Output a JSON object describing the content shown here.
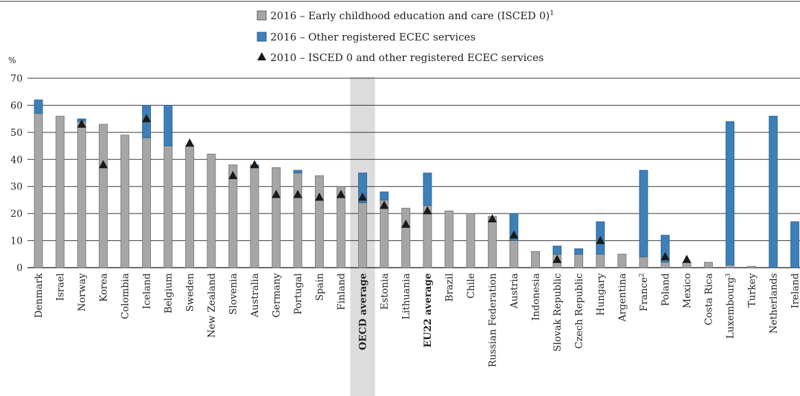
{
  "chart_data": {
    "type": "bar",
    "ylabel": "%",
    "ylim": [
      0,
      70
    ],
    "yticks": [
      0,
      10,
      20,
      30,
      40,
      50,
      60,
      70
    ],
    "grid": true,
    "legend_position": "top-center",
    "colors": {
      "isced0": "#a6a6a6",
      "other": "#3d7fb8",
      "marker": "#1a1a1a",
      "highlight": "#dcdcdc"
    },
    "legend": [
      {
        "label": "2016 – Early childhood education and care (ISCED 0)",
        "sup": "1",
        "kind": "grey-square"
      },
      {
        "label": "2016 – Other registered ECEC services",
        "sup": "",
        "kind": "blue-square"
      },
      {
        "label": "2010 – ISCED 0 and other registered ECEC services",
        "sup": "",
        "kind": "triangle"
      }
    ],
    "categories": [
      {
        "name": "Denmark",
        "sup": ""
      },
      {
        "name": "Israel",
        "sup": ""
      },
      {
        "name": "Norway",
        "sup": ""
      },
      {
        "name": "Korea",
        "sup": ""
      },
      {
        "name": "Colombia",
        "sup": ""
      },
      {
        "name": "Iceland",
        "sup": ""
      },
      {
        "name": "Belgium",
        "sup": ""
      },
      {
        "name": "Sweden",
        "sup": ""
      },
      {
        "name": "New Zealand",
        "sup": ""
      },
      {
        "name": "Slovenia",
        "sup": ""
      },
      {
        "name": "Australia",
        "sup": ""
      },
      {
        "name": "Germany",
        "sup": ""
      },
      {
        "name": "Portugal",
        "sup": ""
      },
      {
        "name": "Spain",
        "sup": ""
      },
      {
        "name": "Finland",
        "sup": ""
      },
      {
        "name": "OECD average",
        "sup": "",
        "bold": true,
        "highlight": true
      },
      {
        "name": "Estonia",
        "sup": ""
      },
      {
        "name": "Lithuania",
        "sup": ""
      },
      {
        "name": "EU22 average",
        "sup": "",
        "bold": true
      },
      {
        "name": "Brazil",
        "sup": ""
      },
      {
        "name": "Chile",
        "sup": ""
      },
      {
        "name": "Russian Federation",
        "sup": ""
      },
      {
        "name": "Austria",
        "sup": ""
      },
      {
        "name": "Indonesia",
        "sup": ""
      },
      {
        "name": "Slovak Republic",
        "sup": ""
      },
      {
        "name": "Czech Republic",
        "sup": ""
      },
      {
        "name": "Hungary",
        "sup": ""
      },
      {
        "name": "Argentina",
        "sup": ""
      },
      {
        "name": "France",
        "sup": "2"
      },
      {
        "name": "Poland",
        "sup": ""
      },
      {
        "name": "Mexico",
        "sup": ""
      },
      {
        "name": "Costa Rica",
        "sup": ""
      },
      {
        "name": "Luxembourg",
        "sup": "3"
      },
      {
        "name": "Turkey",
        "sup": ""
      },
      {
        "name": "Netherlands",
        "sup": ""
      },
      {
        "name": "Ireland",
        "sup": ""
      }
    ],
    "series": [
      {
        "name": "2016 – Early childhood education and care (ISCED 0)",
        "values": [
          57,
          56,
          54,
          53,
          49,
          48,
          45,
          45,
          42,
          38,
          37,
          37,
          35,
          34,
          30,
          24,
          25,
          22,
          23,
          21,
          20,
          19,
          10,
          6,
          5,
          5,
          5,
          5,
          4,
          2,
          2,
          2,
          1,
          0.5,
          0,
          0
        ]
      },
      {
        "name": "2016 – Other registered ECEC services",
        "values": [
          5,
          0,
          1,
          0,
          0,
          12,
          15,
          0,
          0,
          0,
          1,
          0,
          1,
          0,
          0,
          11,
          3,
          0,
          12,
          0,
          0,
          0,
          10,
          0,
          3,
          2,
          12,
          0,
          32,
          10,
          0,
          0,
          53,
          0,
          56,
          17
        ]
      },
      {
        "name": "2010 – ISCED 0 and other registered ECEC services",
        "values": [
          null,
          null,
          53,
          38,
          null,
          55,
          null,
          46,
          null,
          34,
          38,
          27,
          27,
          26,
          27,
          26,
          23,
          16,
          21,
          null,
          null,
          18,
          12,
          null,
          3,
          null,
          10,
          null,
          null,
          4,
          3,
          null,
          null,
          null,
          null,
          null
        ]
      }
    ]
  }
}
